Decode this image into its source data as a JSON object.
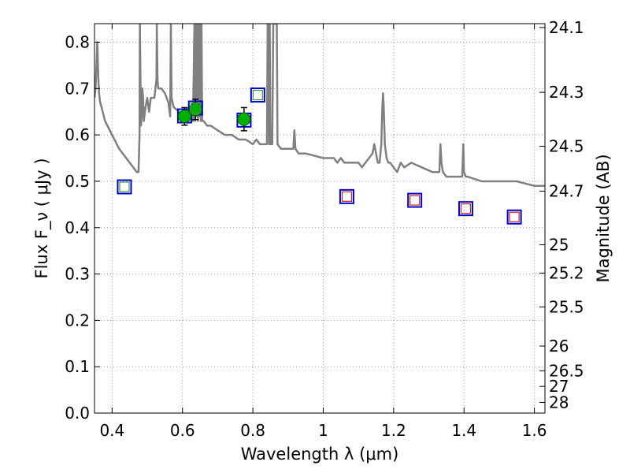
{
  "chart_data": {
    "type": "scatter",
    "xlabel": "Wavelength  λ (μm)",
    "ylabel": "Flux  F_ν  ( μJy )",
    "y2label": "Magnitude (AB)",
    "xlim": [
      0.35,
      1.63
    ],
    "ylim": [
      0.0,
      0.84
    ],
    "grid": true,
    "x_ticks": [
      0.4,
      0.6,
      0.8,
      1.0,
      1.2,
      1.4,
      1.6
    ],
    "x_tick_labels": [
      "0.4",
      "0.6",
      "0.8",
      "1",
      "1.2",
      "1.4",
      "1.6"
    ],
    "y_ticks": [
      0.0,
      0.1,
      0.2,
      0.3,
      0.4,
      0.5,
      0.6,
      0.7,
      0.8
    ],
    "y_tick_labels": [
      "0.0",
      "0.1",
      "0.2",
      "0.3",
      "0.4",
      "0.5",
      "0.6",
      "0.7",
      "0.8"
    ],
    "y2_ticks": [
      24.1,
      24.3,
      24.5,
      24.7,
      25,
      25.2,
      25.5,
      26,
      26.5,
      27,
      28
    ],
    "y2_tick_labels": [
      "24.1",
      "24.3",
      "24.5",
      "24.7",
      "25",
      "25.2",
      "25.5",
      "26",
      "26.5",
      "27",
      "28"
    ],
    "series": [
      {
        "kind": "line",
        "color": "#808080",
        "x": [
          0.35,
          0.353,
          0.356,
          0.358,
          0.361,
          0.363,
          0.366,
          0.37,
          0.38,
          0.4,
          0.42,
          0.44,
          0.46,
          0.47,
          0.475,
          0.478,
          0.479,
          0.481,
          0.482,
          0.484,
          0.486,
          0.488,
          0.49,
          0.495,
          0.5,
          0.505,
          0.51,
          0.52,
          0.526,
          0.527,
          0.529,
          0.531,
          0.54,
          0.55,
          0.56,
          0.565,
          0.567,
          0.569,
          0.575,
          0.59,
          0.6,
          0.62,
          0.63,
          0.634,
          0.636,
          0.638,
          0.64,
          0.642,
          0.644,
          0.646,
          0.648,
          0.65,
          0.652,
          0.654,
          0.656,
          0.66,
          0.67,
          0.68,
          0.7,
          0.72,
          0.74,
          0.76,
          0.78,
          0.8,
          0.81,
          0.82,
          0.83,
          0.84,
          0.842,
          0.844,
          0.846,
          0.848,
          0.85,
          0.855,
          0.858,
          0.86,
          0.862,
          0.864,
          0.866,
          0.868,
          0.87,
          0.88,
          0.9,
          0.915,
          0.918,
          0.921,
          0.93,
          0.95,
          1.0,
          1.03,
          1.04,
          1.05,
          1.06,
          1.08,
          1.1,
          1.11,
          1.12,
          1.13,
          1.14,
          1.145,
          1.15,
          1.155,
          1.16,
          1.165,
          1.168,
          1.17,
          1.172,
          1.175,
          1.18,
          1.185,
          1.19,
          1.2,
          1.21,
          1.22,
          1.23,
          1.25,
          1.28,
          1.31,
          1.325,
          1.33,
          1.333,
          1.336,
          1.34,
          1.35,
          1.37,
          1.39,
          1.395,
          1.398,
          1.4,
          1.405,
          1.41,
          1.45,
          1.5,
          1.55,
          1.6,
          1.63
        ],
        "y": [
          0.68,
          0.7,
          0.76,
          0.8,
          0.72,
          0.69,
          0.67,
          0.66,
          0.63,
          0.6,
          0.57,
          0.55,
          0.53,
          0.52,
          0.52,
          0.6,
          0.84,
          0.7,
          0.62,
          0.64,
          0.7,
          0.68,
          0.63,
          0.66,
          0.68,
          0.65,
          0.68,
          0.68,
          0.72,
          0.84,
          0.72,
          0.7,
          0.7,
          0.69,
          0.67,
          0.64,
          0.84,
          0.68,
          0.66,
          0.65,
          0.64,
          0.64,
          0.63,
          0.84,
          0.63,
          0.84,
          0.64,
          0.84,
          0.63,
          0.84,
          0.64,
          0.84,
          0.63,
          0.84,
          0.63,
          0.63,
          0.62,
          0.62,
          0.61,
          0.6,
          0.6,
          0.59,
          0.59,
          0.58,
          0.59,
          0.58,
          0.58,
          0.58,
          0.84,
          0.84,
          0.58,
          0.84,
          0.58,
          0.58,
          0.84,
          0.84,
          0.84,
          0.84,
          0.84,
          0.84,
          0.58,
          0.57,
          0.57,
          0.57,
          0.61,
          0.57,
          0.56,
          0.56,
          0.55,
          0.55,
          0.54,
          0.55,
          0.54,
          0.54,
          0.54,
          0.53,
          0.54,
          0.55,
          0.56,
          0.58,
          0.56,
          0.54,
          0.54,
          0.58,
          0.66,
          0.69,
          0.66,
          0.58,
          0.55,
          0.54,
          0.54,
          0.53,
          0.52,
          0.54,
          0.53,
          0.54,
          0.53,
          0.52,
          0.52,
          0.52,
          0.58,
          0.54,
          0.52,
          0.51,
          0.51,
          0.51,
          0.51,
          0.58,
          0.52,
          0.51,
          0.51,
          0.5,
          0.5,
          0.5,
          0.49,
          0.49
        ]
      },
      {
        "kind": "observed",
        "marker": "green-circle-with-errorbar",
        "x": [
          0.606,
          0.637,
          0.775
        ],
        "y": [
          0.64,
          0.655,
          0.634
        ],
        "yerr": [
          0.019,
          0.022,
          0.025
        ]
      },
      {
        "kind": "model-blue-squares",
        "x": [
          0.435,
          0.606,
          0.637,
          0.775,
          0.814,
          1.067,
          1.26,
          1.405,
          1.543
        ],
        "y": [
          0.488,
          0.641,
          0.658,
          0.632,
          0.686,
          0.467,
          0.459,
          0.441,
          0.423
        ]
      },
      {
        "kind": "inner-squares",
        "x": [
          0.435,
          0.637,
          0.814,
          1.067,
          1.26,
          1.405,
          1.543
        ],
        "y": [
          0.488,
          0.658,
          0.686,
          0.467,
          0.459,
          0.441,
          0.423
        ],
        "colors": [
          "#3a9a3a",
          "#3a9a3a",
          "#3a9a3a",
          "#cc2020",
          "#cc2020",
          "#cc2020",
          "#cc2020"
        ]
      }
    ]
  },
  "colors": {
    "spectrum": "#808080",
    "observed_fill": "#00b000",
    "model_square": "#0000cc",
    "grid": "#999999"
  }
}
